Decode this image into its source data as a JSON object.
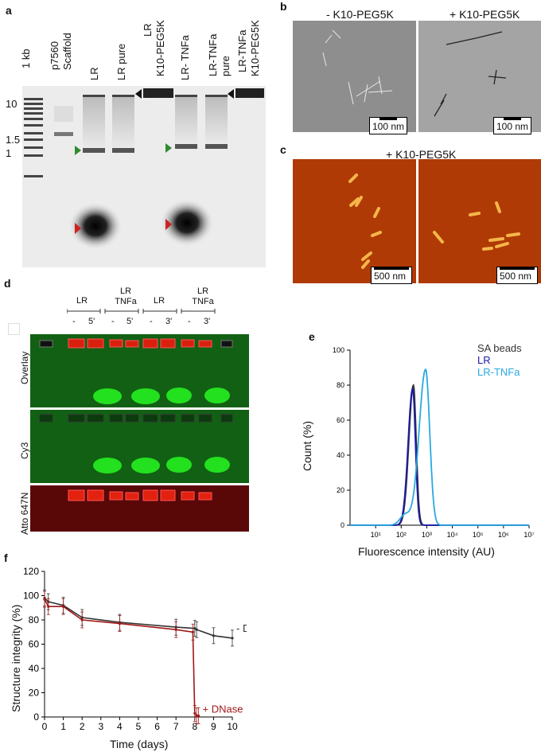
{
  "panel_a": {
    "label": "a",
    "lanes": [
      "1 kb",
      "p7560",
      "Scaffold",
      "LR",
      "LR pure",
      "LR",
      "K10-PEG5K",
      "LR- TNFa",
      "LR-TNFa",
      "pure",
      "LR-TNFa",
      "K10-PEG5K"
    ],
    "size_marks": [
      "10",
      "1.5",
      "1"
    ]
  },
  "panel_b": {
    "label": "b",
    "left_title": "- K10-PEG5K",
    "right_title": "+ K10-PEG5K",
    "scale_left": "100 nm",
    "scale_right": "100 nm"
  },
  "panel_c": {
    "label": "c",
    "title": "+ K10-PEG5K",
    "scale_left": "500 nm",
    "scale_right": "500 nm"
  },
  "panel_d": {
    "label": "d",
    "groups": [
      "LR",
      "LR TNFa",
      "LR",
      "LR TNFa"
    ],
    "times": [
      "-",
      "5'",
      "-",
      "5'",
      "-",
      "3'",
      "-",
      "3'"
    ],
    "rows": [
      "Overlay",
      "Cy3",
      "Atto 647N"
    ]
  },
  "panel_e": {
    "label": "e",
    "chart_data": {
      "type": "line",
      "xlabel": "Fluorescence  intensity (AU)",
      "ylabel": "Count (%)",
      "xscale": "log",
      "xlim": [
        1,
        10000000
      ],
      "ylim": [
        0,
        100
      ],
      "yticks": [
        0,
        20,
        40,
        60,
        80,
        100
      ],
      "xticks": [
        "10¹",
        "10²",
        "10³",
        "10⁴",
        "10⁵",
        "10⁶",
        "10⁷"
      ],
      "legend_position": "top-right",
      "series": [
        {
          "name": "SA beads",
          "color": "#333333",
          "peak_x": 300,
          "peak_y": 80
        },
        {
          "name": "LR",
          "color": "#1a1aa8",
          "peak_x": 280,
          "peak_y": 78
        },
        {
          "name": "LR-TNFa",
          "color": "#2aa9e0",
          "peak_x": 900,
          "peak_y": 89
        }
      ]
    }
  },
  "panel_f": {
    "label": "f",
    "chart_data": {
      "type": "line",
      "xlabel": "Time (days)",
      "ylabel": "Structure integrity (%)",
      "xlim": [
        0,
        10
      ],
      "ylim": [
        0,
        120
      ],
      "xticks": [
        0,
        1,
        2,
        3,
        4,
        5,
        6,
        7,
        8,
        9,
        10
      ],
      "yticks": [
        0,
        20,
        40,
        60,
        80,
        100,
        120
      ],
      "series": [
        {
          "name": "- DNase I",
          "color": "#333333",
          "x": [
            0,
            0.2,
            1,
            2,
            4,
            7,
            8,
            8.1,
            9,
            10
          ],
          "y": [
            98,
            95,
            92,
            82,
            78,
            74,
            73,
            72,
            67,
            65
          ]
        },
        {
          "name": "+ DNase I",
          "color": "#a01818",
          "x": [
            0,
            0.2,
            1,
            2,
            4,
            7,
            7.9,
            8,
            8.1,
            8.2
          ],
          "y": [
            97,
            91,
            91,
            80,
            77,
            72,
            70,
            3,
            1,
            1
          ]
        }
      ]
    }
  }
}
